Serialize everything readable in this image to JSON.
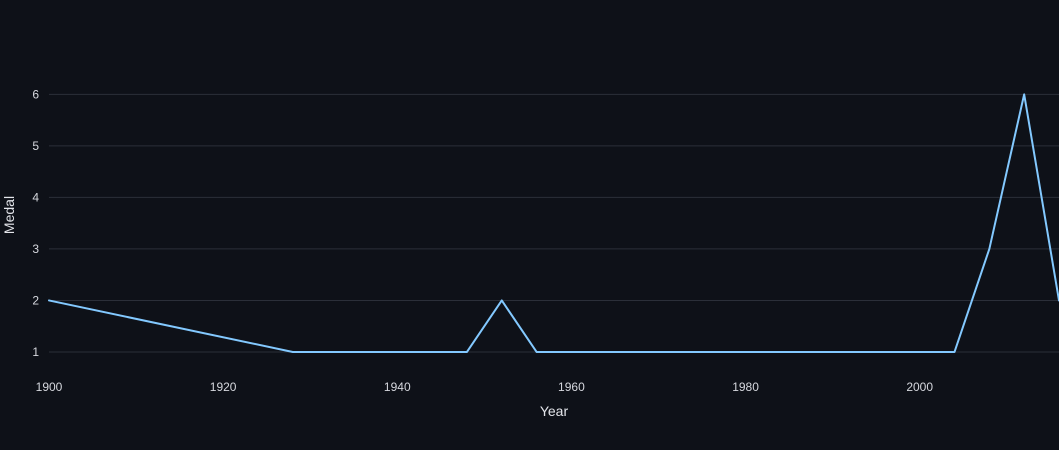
{
  "chart_data": {
    "type": "line",
    "xlabel": "Year",
    "ylabel": "Medal",
    "xlim": [
      1900,
      2016
    ],
    "ylim": [
      0.65,
      6.9
    ],
    "x_ticks": [
      1900,
      1920,
      1940,
      1960,
      1980,
      2000
    ],
    "y_ticks": [
      1,
      2,
      3,
      4,
      5,
      6
    ],
    "grid": true,
    "legend": "none",
    "series": [
      {
        "color": "#83c9ff",
        "x": [
          1900,
          1928,
          1948,
          1952,
          1956,
          1960,
          1964,
          1968,
          1972,
          1976,
          1980,
          1984,
          1988,
          1992,
          1996,
          2000,
          2004,
          2008,
          2012,
          2016
        ],
        "y": [
          2,
          1,
          1,
          2,
          1,
          1,
          1,
          1,
          1,
          1,
          1,
          1,
          1,
          1,
          1,
          1,
          1,
          3,
          6,
          2
        ]
      }
    ]
  }
}
